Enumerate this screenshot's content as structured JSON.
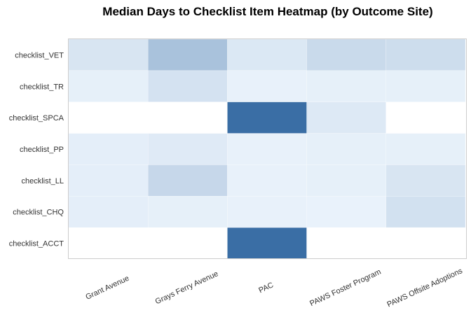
{
  "chart_data": {
    "type": "heatmap",
    "title": "Median Days to Checklist Item Heatmap (by Outcome Site)",
    "xlabel": "",
    "ylabel": "",
    "x_categories": [
      "Grant Avenue",
      "Grays Ferry Avenue",
      "PAC",
      "PAWS Foster Program",
      "PAWS Offsite Adoptions"
    ],
    "y_categories": [
      "checklist_VET",
      "checklist_TR",
      "checklist_SPCA",
      "checklist_PP",
      "checklist_LL",
      "checklist_CHQ",
      "checklist_ACCT"
    ],
    "values": [
      [
        12,
        38,
        10,
        20,
        18
      ],
      [
        4,
        14,
        3,
        4,
        4
      ],
      [
        null,
        null,
        100,
        9,
        null
      ],
      [
        5,
        8,
        3,
        4,
        4
      ],
      [
        5,
        22,
        3,
        4,
        12
      ],
      [
        5,
        4,
        3,
        2,
        15
      ],
      [
        null,
        null,
        100,
        null,
        null
      ]
    ],
    "color_scale": {
      "low": "#edf5fd",
      "high": "#3a6ea5",
      "missing": "#ffffff",
      "domain": [
        0,
        100
      ]
    },
    "legend": "none",
    "grid": false
  }
}
